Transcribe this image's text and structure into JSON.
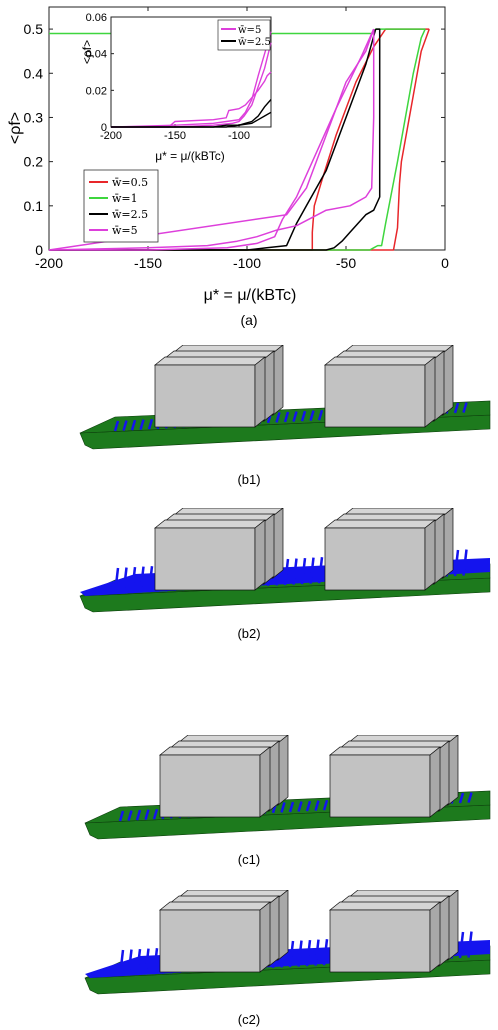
{
  "chart_data": [
    {
      "type": "line",
      "panel_label": "(a)",
      "xlabel": "μ* = μ/(kBTc)",
      "ylabel": "<ρf>",
      "xlim": [
        -200,
        0
      ],
      "ylim": [
        0,
        0.55
      ],
      "x_ticks": [
        "-200",
        "-150",
        "-100",
        "-50",
        "0"
      ],
      "y_ticks": [
        "0",
        "0.1",
        "0.2",
        "0.3",
        "0.4",
        "0.5"
      ],
      "grid": false,
      "legend_position": "lower-left",
      "series": [
        {
          "name": "w̄=0.5",
          "color": "#e8262a",
          "branch": "adsorption",
          "x": [
            -200,
            -30,
            -26,
            -24,
            -23,
            -22,
            -16,
            -12,
            -8
          ],
          "y": [
            0,
            0,
            0,
            0.05,
            0.15,
            0.2,
            0.35,
            0.45,
            0.5
          ]
        },
        {
          "name": "w̄=0.5",
          "color": "#e8262a",
          "branch": "desorption",
          "x": [
            -8,
            -18,
            -24,
            -30,
            -36,
            -45,
            -55,
            -62,
            -66,
            -67,
            -67,
            -200
          ],
          "y": [
            0.5,
            0.5,
            0.5,
            0.5,
            0.46,
            0.38,
            0.26,
            0.16,
            0.1,
            0.04,
            0,
            0
          ]
        },
        {
          "name": "w̄=1",
          "color": "#3ed63e",
          "branch": "adsorption",
          "x": [
            -200,
            -38,
            -36,
            -34,
            -32,
            -30,
            -24,
            -20,
            -16,
            -12,
            -10
          ],
          "y": [
            0,
            0,
            0.005,
            0.01,
            0.01,
            0.06,
            0.2,
            0.3,
            0.4,
            0.48,
            0.5
          ]
        },
        {
          "name": "w̄=1",
          "color": "#3ed63e",
          "branch": "desorption",
          "x": [
            -10,
            -35,
            -36,
            -200
          ],
          "y": [
            0.5,
            0.5,
            0.49,
            0.49
          ]
        },
        {
          "name": "w̄=2.5",
          "color": "#000000",
          "branch": "adsorption",
          "x": [
            -200,
            -100,
            -60,
            -56,
            -52,
            -48,
            -44,
            -40,
            -36,
            -33,
            -33,
            -35
          ],
          "y": [
            0,
            0,
            0,
            0.005,
            0.02,
            0.04,
            0.06,
            0.08,
            0.09,
            0.12,
            0.5,
            0.5
          ]
        },
        {
          "name": "w̄=2.5",
          "color": "#000000",
          "branch": "desorption",
          "x": [
            -35,
            -40,
            -50,
            -60,
            -70,
            -75,
            -78,
            -80,
            -90,
            -100,
            -200
          ],
          "y": [
            0.5,
            0.42,
            0.3,
            0.18,
            0.1,
            0.06,
            0.03,
            0.01,
            0.005,
            0,
            0
          ]
        },
        {
          "name": "w̄=5",
          "color": "#dd3fdb",
          "branch": "adsorption",
          "x": [
            -200,
            -150,
            -120,
            -105,
            -95,
            -85,
            -75,
            -60,
            -48,
            -40,
            -37,
            -36,
            -36
          ],
          "y": [
            0,
            0.005,
            0.01,
            0.02,
            0.03,
            0.045,
            0.055,
            0.09,
            0.1,
            0.12,
            0.14,
            0.3,
            0.5
          ]
        },
        {
          "name": "w̄=5",
          "color": "#dd3fdb",
          "branch": "adsorption-b",
          "x": [
            -36,
            -40,
            -50,
            -60,
            -70,
            -80,
            -200
          ],
          "y": [
            0.5,
            0.45,
            0.38,
            0.26,
            0.14,
            0.08,
            0.0
          ]
        },
        {
          "name": "w̄=5",
          "color": "#dd3fdb",
          "branch": "desorption",
          "x": [
            -36,
            -42,
            -55,
            -65,
            -75,
            -82,
            -86,
            -95,
            -110,
            -150,
            -200
          ],
          "y": [
            0.5,
            0.44,
            0.32,
            0.22,
            0.12,
            0.07,
            0.03,
            0.015,
            0.005,
            0,
            0
          ]
        }
      ],
      "legend": [
        "w̄=0.5",
        "w̄=1",
        "w̄=2.5",
        "w̄=5"
      ]
    },
    {
      "type": "line",
      "role": "inset",
      "xlabel": "μ* = μ/(kBTc)",
      "ylabel": "<ρf>",
      "xlim": [
        -200,
        -75
      ],
      "ylim": [
        0,
        0.06
      ],
      "x_ticks": [
        "-200",
        "-150",
        "-100"
      ],
      "y_ticks": [
        "0",
        "0.02",
        "0.04",
        "0.06"
      ],
      "legend_position": "top-right",
      "legend": [
        "w̄=5",
        "w̄=2.5"
      ],
      "series": [
        {
          "name": "w̄=5",
          "color": "#dd3fdb",
          "x": [
            -200,
            -155,
            -150,
            -120,
            -110,
            -108,
            -100,
            -95,
            -90,
            -85,
            -80,
            -78,
            -75
          ],
          "y": [
            0,
            0,
            0.003,
            0.004,
            0.005,
            0.009,
            0.01,
            0.012,
            0.016,
            0.02,
            0.025,
            0.028,
            0.03
          ]
        },
        {
          "name": "w̄=5",
          "color": "#dd3fdb",
          "x": [
            -200,
            -150,
            -120,
            -110,
            -100,
            -95,
            -90,
            -85,
            -80,
            -75
          ],
          "y": [
            0,
            0.001,
            0.002,
            0.003,
            0.004,
            0.008,
            0.015,
            0.028,
            0.04,
            0.052
          ]
        },
        {
          "name": "w̄=5",
          "color": "#dd3fdb",
          "x": [
            -200,
            -150,
            -120,
            -105,
            -100,
            -96,
            -90,
            -85,
            -80,
            -75
          ],
          "y": [
            0,
            0,
            0.001,
            0.002,
            0.003,
            0.006,
            0.012,
            0.022,
            0.032,
            0.046
          ]
        },
        {
          "name": "w̄=2.5",
          "color": "#000000",
          "x": [
            -200,
            -120,
            -110,
            -100,
            -95,
            -90,
            -85,
            -80,
            -75
          ],
          "y": [
            0,
            0,
            0.001,
            0.001,
            0.002,
            0.003,
            0.006,
            0.011,
            0.015
          ]
        },
        {
          "name": "w̄=2.5",
          "color": "#000000",
          "x": [
            -200,
            -110,
            -100,
            -90,
            -85,
            -80,
            -75
          ],
          "y": [
            0,
            0,
            0.001,
            0.002,
            0.004,
            0.006,
            0.008
          ]
        }
      ]
    }
  ],
  "panels": [
    {
      "label": "(b1)",
      "fill": "sparse"
    },
    {
      "label": "(b2)",
      "fill": "dense"
    },
    {
      "label": "(c1)",
      "fill": "sparse"
    },
    {
      "label": "(c2)",
      "fill": "dense"
    }
  ],
  "colors": {
    "substrate": "#1d7a1d",
    "fluid": "#1414ee",
    "block": "#c2c2c2",
    "block_edge": "#111111"
  }
}
